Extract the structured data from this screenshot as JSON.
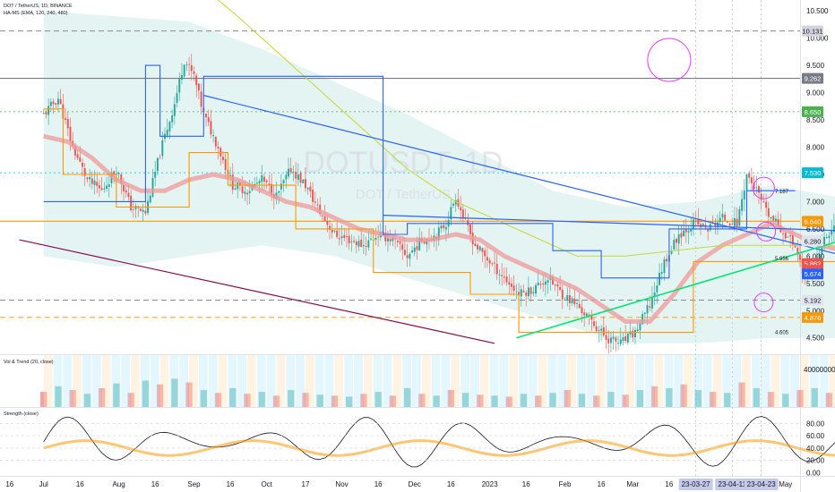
{
  "header": {
    "title": "DOT / TetherUS, 1D, BINANCE",
    "indicator": "HA-MS (EMA, 120, 240, 480)",
    "pane2_title": "Vol & Trend (20, close)",
    "pane3_title": "Strength (close)"
  },
  "watermark": {
    "symbol": "DOTUSDT, 1D",
    "name": "DOT / TetherUS"
  },
  "colors": {
    "bull": "#26a69a",
    "bear": "#ef5350",
    "blue": "#2962ff",
    "orange": "#ff9800",
    "green": "#00e676",
    "magenta": "#e91e63",
    "maroon": "#880e4f",
    "olive": "#c6d639",
    "band": "#b2dfdb",
    "ema": "#ef9a9a"
  },
  "chart_data": [
    {
      "type": "candlestick",
      "pane": "price",
      "title": "DOT / TetherUS, 1D, BINANCE",
      "ylim": [
        4.2,
        10.7
      ],
      "price_ticks": [
        "10.500",
        "10.000",
        "9.500",
        "9.000",
        "8.500",
        "8.000",
        "7.500",
        "7.000",
        "6.500",
        "6.000",
        "5.500",
        "5.000",
        "4.500"
      ],
      "price_ticks_values": [
        10.5,
        10.0,
        9.5,
        9.0,
        8.5,
        8.0,
        7.5,
        7.0,
        6.5,
        6.0,
        5.5,
        5.0,
        4.5
      ],
      "badges": [
        {
          "text": "10.131",
          "value": 10.131,
          "color": "#d1d4dc",
          "text_color": "#131722"
        },
        {
          "text": "9.262",
          "value": 9.262,
          "color": "#787b86",
          "text_color": "#ffffff"
        },
        {
          "text": "8.650",
          "value": 8.65,
          "color": "#4caf50",
          "text_color": "#ffffff"
        },
        {
          "text": "7.530",
          "value": 7.53,
          "color": "#00bcd4",
          "text_color": "#ffffff"
        },
        {
          "text": "6.640",
          "value": 6.64,
          "color": "#ff9800",
          "text_color": "#ffffff"
        },
        {
          "text": "6.280",
          "value": 6.28,
          "color": "#e0e3eb",
          "text_color": "#131722"
        },
        {
          "text": "5.862",
          "value": 5.862,
          "color": "#ef5350",
          "text_color": "#ffffff"
        },
        {
          "text": "44:49",
          "value": 5.74,
          "color": "#ef5350",
          "text_color": "#ffffff"
        },
        {
          "text": "5.674",
          "value": 5.674,
          "color": "#2962ff",
          "text_color": "#ffffff"
        },
        {
          "text": "5.192",
          "value": 5.192,
          "color": "#e0e3eb",
          "text_color": "#131722"
        },
        {
          "text": "4.876",
          "value": 4.876,
          "color": "#ff9800",
          "text_color": "#ffffff"
        }
      ],
      "annotations": [
        {
          "text": "7.187",
          "value": 7.187
        },
        {
          "text": "5.956",
          "value": 5.956
        },
        {
          "text": "4.605",
          "value": 4.605
        }
      ],
      "levels": [
        {
          "value": 10.131,
          "style": "dashed",
          "color": "#787b86"
        },
        {
          "value": 9.262,
          "style": "solid",
          "color": "#787b86"
        },
        {
          "value": 8.65,
          "style": "dotted",
          "color": "#4caf50"
        },
        {
          "value": 7.53,
          "style": "dotted",
          "color": "#00bcd4"
        },
        {
          "value": 6.64,
          "style": "solid",
          "color": "#ff9800"
        },
        {
          "value": 5.192,
          "style": "dashed",
          "color": "#787b86"
        },
        {
          "value": 4.876,
          "style": "dashed",
          "color": "#ff9800"
        }
      ],
      "close_path": [
        [
          0,
          8.6
        ],
        [
          6,
          8.9
        ],
        [
          12,
          8.0
        ],
        [
          18,
          7.4
        ],
        [
          24,
          7.2
        ],
        [
          30,
          7.6
        ],
        [
          36,
          6.9
        ],
        [
          42,
          6.8
        ],
        [
          48,
          7.9
        ],
        [
          54,
          8.8
        ],
        [
          58,
          9.6
        ],
        [
          62,
          9.3
        ],
        [
          66,
          8.6
        ],
        [
          72,
          8.0
        ],
        [
          78,
          7.3
        ],
        [
          84,
          7.2
        ],
        [
          90,
          7.4
        ],
        [
          96,
          7.1
        ],
        [
          102,
          7.6
        ],
        [
          108,
          7.3
        ],
        [
          114,
          6.8
        ],
        [
          120,
          6.4
        ],
        [
          126,
          6.3
        ],
        [
          132,
          6.2
        ],
        [
          138,
          6.4
        ],
        [
          144,
          6.3
        ],
        [
          150,
          6.0
        ],
        [
          156,
          6.3
        ],
        [
          162,
          6.4
        ],
        [
          166,
          6.6
        ],
        [
          170,
          7.1
        ],
        [
          174,
          6.6
        ],
        [
          178,
          6.2
        ],
        [
          184,
          5.9
        ],
        [
          190,
          5.6
        ],
        [
          196,
          5.3
        ],
        [
          202,
          5.4
        ],
        [
          208,
          5.6
        ],
        [
          214,
          5.3
        ],
        [
          220,
          5.1
        ],
        [
          226,
          4.8
        ],
        [
          232,
          4.5
        ],
        [
          238,
          4.4
        ],
        [
          244,
          4.6
        ],
        [
          250,
          5.1
        ],
        [
          256,
          5.9
        ],
        [
          262,
          6.4
        ],
        [
          268,
          6.6
        ],
        [
          274,
          6.5
        ],
        [
          280,
          6.7
        ],
        [
          286,
          6.6
        ],
        [
          290,
          7.5
        ],
        [
          294,
          7.2
        ],
        [
          298,
          6.8
        ],
        [
          304,
          6.5
        ],
        [
          310,
          6.2
        ],
        [
          314,
          5.6
        ],
        [
          318,
          5.8
        ],
        [
          322,
          6.3
        ],
        [
          326,
          6.5
        ],
        [
          332,
          6.0
        ],
        [
          338,
          5.862
        ]
      ],
      "ema_path": [
        [
          0,
          8.2
        ],
        [
          10,
          8.1
        ],
        [
          20,
          7.8
        ],
        [
          30,
          7.4
        ],
        [
          40,
          7.2
        ],
        [
          50,
          7.2
        ],
        [
          60,
          7.4
        ],
        [
          70,
          7.5
        ],
        [
          80,
          7.4
        ],
        [
          90,
          7.2
        ],
        [
          100,
          7.0
        ],
        [
          110,
          6.9
        ],
        [
          120,
          6.7
        ],
        [
          130,
          6.5
        ],
        [
          140,
          6.4
        ],
        [
          150,
          6.3
        ],
        [
          160,
          6.3
        ],
        [
          170,
          6.4
        ],
        [
          180,
          6.3
        ],
        [
          190,
          6.0
        ],
        [
          200,
          5.8
        ],
        [
          210,
          5.6
        ],
        [
          220,
          5.4
        ],
        [
          230,
          5.1
        ],
        [
          240,
          4.8
        ],
        [
          250,
          4.8
        ],
        [
          260,
          5.3
        ],
        [
          270,
          5.9
        ],
        [
          280,
          6.2
        ],
        [
          290,
          6.4
        ],
        [
          300,
          6.6
        ],
        [
          310,
          6.4
        ],
        [
          320,
          6.2
        ],
        [
          330,
          6.1
        ],
        [
          338,
          6.0
        ]
      ],
      "band_upper": [
        [
          0,
          10.5
        ],
        [
          30,
          10.4
        ],
        [
          60,
          10.3
        ],
        [
          90,
          9.8
        ],
        [
          120,
          9.2
        ],
        [
          150,
          8.6
        ],
        [
          180,
          7.9
        ],
        [
          210,
          7.2
        ],
        [
          240,
          6.9
        ],
        [
          270,
          7.0
        ],
        [
          300,
          7.3
        ],
        [
          338,
          7.0
        ]
      ],
      "band_lower": [
        [
          0,
          6.0
        ],
        [
          30,
          5.8
        ],
        [
          60,
          6.0
        ],
        [
          90,
          6.2
        ],
        [
          120,
          6.0
        ],
        [
          150,
          5.6
        ],
        [
          180,
          5.2
        ],
        [
          210,
          4.8
        ],
        [
          240,
          4.4
        ],
        [
          270,
          4.4
        ],
        [
          300,
          4.5
        ],
        [
          338,
          4.5
        ]
      ],
      "stair_blue": [
        [
          0,
          7.0
        ],
        [
          42,
          7.0
        ],
        [
          42,
          9.5
        ],
        [
          48,
          9.5
        ],
        [
          48,
          8.2
        ],
        [
          66,
          8.2
        ],
        [
          66,
          9.3
        ],
        [
          140,
          9.3
        ],
        [
          140,
          6.4
        ],
        [
          150,
          6.4
        ],
        [
          150,
          6.6
        ],
        [
          210,
          6.6
        ],
        [
          210,
          6.1
        ],
        [
          230,
          6.1
        ],
        [
          230,
          5.6
        ],
        [
          258,
          5.6
        ],
        [
          258,
          6.5
        ],
        [
          290,
          6.5
        ],
        [
          290,
          7.2
        ],
        [
          310,
          7.2
        ]
      ],
      "stair_orange": [
        [
          0,
          8.7
        ],
        [
          8,
          8.7
        ],
        [
          8,
          7.5
        ],
        [
          30,
          7.5
        ],
        [
          30,
          6.9
        ],
        [
          60,
          6.9
        ],
        [
          60,
          7.9
        ],
        [
          76,
          7.9
        ],
        [
          76,
          7.3
        ],
        [
          104,
          7.3
        ],
        [
          104,
          6.5
        ],
        [
          136,
          6.5
        ],
        [
          136,
          5.7
        ],
        [
          176,
          5.7
        ],
        [
          176,
          5.3
        ],
        [
          196,
          5.3
        ],
        [
          196,
          4.6
        ],
        [
          268,
          4.6
        ],
        [
          268,
          5.9
        ],
        [
          338,
          5.9
        ]
      ],
      "stair_olive": [
        [
          72,
          10.7
        ],
        [
          80,
          10.4
        ],
        [
          90,
          10.0
        ],
        [
          100,
          9.6
        ],
        [
          110,
          9.2
        ],
        [
          120,
          8.8
        ],
        [
          130,
          8.4
        ],
        [
          140,
          8.0
        ],
        [
          150,
          7.6
        ],
        [
          160,
          7.3
        ],
        [
          170,
          7.0
        ],
        [
          180,
          6.8
        ],
        [
          190,
          6.6
        ],
        [
          200,
          6.4
        ],
        [
          210,
          6.2
        ],
        [
          220,
          6.0
        ],
        [
          240,
          6.0
        ],
        [
          260,
          6.1
        ],
        [
          280,
          6.2
        ],
        [
          300,
          6.2
        ],
        [
          338,
          6.2
        ]
      ],
      "trendlines": [
        {
          "from": [
            66,
            8.95
          ],
          "to": [
            360,
            5.674
          ],
          "color": "#2962ff"
        },
        {
          "from": [
            140,
            6.75
          ],
          "to": [
            360,
            6.42
          ],
          "color": "#2962ff"
        },
        {
          "from": [
            195,
            4.5
          ],
          "to": [
            360,
            6.7
          ],
          "color": "#00e676"
        },
        {
          "from": [
            -10,
            6.3
          ],
          "to": [
            186,
            4.4
          ],
          "color": "#880e4f"
        }
      ],
      "circles": [
        {
          "x": 258,
          "value": 9.6,
          "r": 16
        },
        {
          "x": 297,
          "value": 7.25,
          "r": 8
        },
        {
          "x": 298,
          "value": 6.45,
          "r": 7
        },
        {
          "x": 297,
          "value": 5.15,
          "r": 7
        }
      ]
    },
    {
      "type": "bar",
      "pane": "volume",
      "title": "Vol & Trend (20, close)",
      "ylim": [
        0,
        55000000
      ],
      "price_ticks": [
        "40000000"
      ],
      "price_ticks_values": [
        40000000
      ],
      "volume": [
        [
          0,
          16
        ],
        [
          6,
          22
        ],
        [
          12,
          18
        ],
        [
          18,
          14
        ],
        [
          24,
          20
        ],
        [
          30,
          25
        ],
        [
          36,
          15
        ],
        [
          42,
          28
        ],
        [
          48,
          24
        ],
        [
          54,
          30
        ],
        [
          60,
          26
        ],
        [
          66,
          18
        ],
        [
          72,
          15
        ],
        [
          78,
          20
        ],
        [
          84,
          14
        ],
        [
          90,
          16
        ],
        [
          96,
          12
        ],
        [
          102,
          18
        ],
        [
          108,
          15
        ],
        [
          114,
          13
        ],
        [
          120,
          12
        ],
        [
          126,
          11
        ],
        [
          132,
          14
        ],
        [
          138,
          16
        ],
        [
          144,
          12
        ],
        [
          150,
          20
        ],
        [
          156,
          14
        ],
        [
          162,
          12
        ],
        [
          168,
          18
        ],
        [
          174,
          15
        ],
        [
          180,
          13
        ],
        [
          186,
          12
        ],
        [
          192,
          11
        ],
        [
          198,
          14
        ],
        [
          204,
          12
        ],
        [
          210,
          15
        ],
        [
          216,
          18
        ],
        [
          222,
          14
        ],
        [
          228,
          12
        ],
        [
          234,
          16
        ],
        [
          240,
          13
        ],
        [
          246,
          18
        ],
        [
          252,
          22
        ],
        [
          258,
          20
        ],
        [
          264,
          24
        ],
        [
          270,
          18
        ],
        [
          276,
          16
        ],
        [
          282,
          15
        ],
        [
          288,
          26
        ],
        [
          294,
          20
        ],
        [
          300,
          16
        ],
        [
          306,
          14
        ],
        [
          312,
          18
        ],
        [
          318,
          20
        ],
        [
          324,
          15
        ],
        [
          330,
          13
        ],
        [
          338,
          12
        ]
      ]
    },
    {
      "type": "line",
      "pane": "strength",
      "title": "Strength (close)",
      "ylim": [
        -5,
        105
      ],
      "price_ticks": [
        "80.00",
        "60.00",
        "40.00",
        "20.00",
        "0.00"
      ],
      "price_ticks_values": [
        80,
        60,
        40,
        20,
        0
      ]
    }
  ],
  "time_axis": {
    "labels": [
      "16",
      "Jul",
      "16",
      "Aug",
      "16",
      "Sep",
      "16",
      "Oct",
      "17",
      "Nov",
      "16",
      "Dec",
      "16",
      "2023",
      "16",
      "Feb",
      "16",
      "Mar",
      "16"
    ],
    "label_days": [
      -14,
      0,
      15,
      31,
      46,
      62,
      77,
      92,
      108,
      123,
      138,
      153,
      168,
      184,
      199,
      215,
      230,
      243,
      258
    ],
    "highlighted": [
      "23-03-27",
      "23-04-11",
      "23-04-23"
    ],
    "highlighted_days": [
      269,
      284,
      296
    ],
    "trailing_label": "May",
    "trailing_day": 306
  }
}
